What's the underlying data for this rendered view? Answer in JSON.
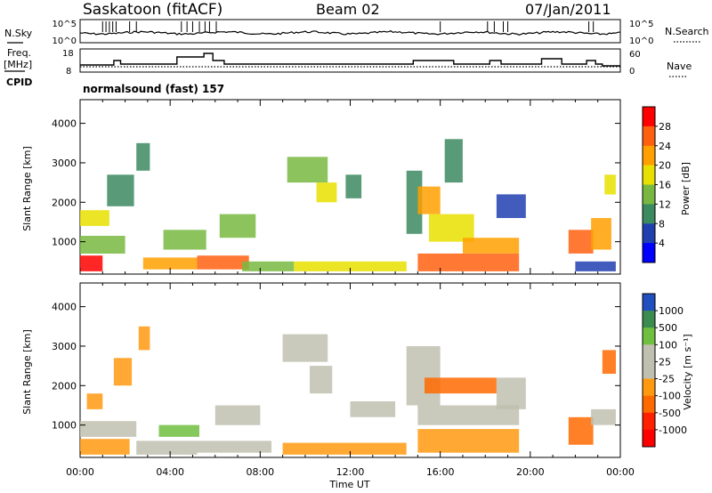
{
  "header": {
    "station": "Saskatoon (fitACF)",
    "beam": "Beam 02",
    "date": "07/Jan/2011"
  },
  "left_labels": {
    "nsky": "N.Sky",
    "freq_line1": "Freq.",
    "freq_line2": "[MHz]",
    "cpid": "CPID"
  },
  "right_labels": {
    "nsearch": "N.Search",
    "nave": "Nave"
  },
  "cpid_text": "normalsound (fast) 157",
  "colors": {
    "power_scale": [
      "#0000ff",
      "#2040b0",
      "#3c8a60",
      "#78b840",
      "#e8e000",
      "#ffa000",
      "#ff6010",
      "#ff0000"
    ],
    "velocity_scale": [
      "#2050c0",
      "#3c8c50",
      "#70c040",
      "#c0c0b0",
      "#c0c0b0",
      "#ff9a10",
      "#ff6a00",
      "#ff2000",
      "#ff0000"
    ]
  },
  "chart_data": [
    {
      "type": "line",
      "name_label": "N.Sky / N.Search",
      "y_ticks": [
        "10^5",
        "10^0"
      ],
      "right_ticks": [
        "10^5",
        "10^0"
      ],
      "x_range_hours": [
        0,
        24
      ]
    },
    {
      "type": "line",
      "left_ticks": [
        "18",
        "8"
      ],
      "right_ticks": [
        "60",
        "0"
      ],
      "series": [
        {
          "name": "Freq.",
          "unit": "MHz",
          "steps": [
            [
              0,
              10.5
            ],
            [
              1.5,
              13
            ],
            [
              1.8,
              11
            ],
            [
              4.2,
              11
            ],
            [
              4.3,
              15
            ],
            [
              5.3,
              15
            ],
            [
              5.5,
              17
            ],
            [
              5.8,
              17
            ],
            [
              5.9,
              13
            ],
            [
              6.4,
              11
            ],
            [
              8.0,
              11
            ],
            [
              9.8,
              11
            ],
            [
              11.2,
              11
            ],
            [
              12.6,
              11
            ],
            [
              13.4,
              11
            ],
            [
              14.3,
              11
            ],
            [
              14.8,
              13
            ],
            [
              16.6,
              11
            ],
            [
              17.6,
              11
            ],
            [
              18.2,
              13
            ],
            [
              18.7,
              11
            ],
            [
              20.4,
              11
            ],
            [
              20.5,
              14
            ],
            [
              21.3,
              14
            ],
            [
              21.4,
              11
            ],
            [
              22.4,
              11
            ],
            [
              22.5,
              13
            ],
            [
              22.9,
              11
            ],
            [
              23.2,
              10
            ],
            [
              24,
              10
            ]
          ]
        },
        {
          "name": "Nave",
          "steps": [
            [
              0,
              9.5
            ],
            [
              24,
              9.5
            ]
          ]
        }
      ]
    },
    {
      "type": "heatmap",
      "name": "Power",
      "xlabel": "",
      "ylabel": "Slant Range [km]",
      "x_ticks": [
        "00:00",
        "04:00",
        "08:00",
        "12:00",
        "16:00",
        "20:00",
        "00:00"
      ],
      "y_ticks": [
        1000,
        2000,
        3000,
        4000
      ],
      "ylim": [
        180,
        4600
      ],
      "colorbar_label": "Power [dB]",
      "colorbar_ticks": [
        4,
        8,
        12,
        16,
        20,
        24,
        28
      ],
      "regions": [
        {
          "t0": 0.0,
          "t1": 1.0,
          "r0": 250,
          "r1": 650,
          "level": 7
        },
        {
          "t0": 0.0,
          "t1": 2.0,
          "r0": 700,
          "r1": 1150,
          "level": 3
        },
        {
          "t0": 0.0,
          "t1": 1.3,
          "r0": 1400,
          "r1": 1800,
          "level": 4
        },
        {
          "t0": 1.2,
          "t1": 2.4,
          "r0": 1900,
          "r1": 2700,
          "level": 2
        },
        {
          "t0": 2.5,
          "t1": 3.1,
          "r0": 2800,
          "r1": 3500,
          "level": 2
        },
        {
          "t0": 2.8,
          "t1": 5.2,
          "r0": 300,
          "r1": 600,
          "level": 5
        },
        {
          "t0": 3.7,
          "t1": 5.6,
          "r0": 800,
          "r1": 1300,
          "level": 3
        },
        {
          "t0": 5.2,
          "t1": 7.5,
          "r0": 300,
          "r1": 650,
          "level": 6
        },
        {
          "t0": 6.2,
          "t1": 7.8,
          "r0": 1100,
          "r1": 1700,
          "level": 3
        },
        {
          "t0": 7.2,
          "t1": 9.5,
          "r0": 250,
          "r1": 500,
          "level": 3
        },
        {
          "t0": 9.2,
          "t1": 11.0,
          "r0": 2500,
          "r1": 3150,
          "level": 3
        },
        {
          "t0": 10.5,
          "t1": 11.4,
          "r0": 2000,
          "r1": 2500,
          "level": 4
        },
        {
          "t0": 9.5,
          "t1": 14.5,
          "r0": 250,
          "r1": 500,
          "level": 4
        },
        {
          "t0": 11.8,
          "t1": 12.5,
          "r0": 2100,
          "r1": 2700,
          "level": 2
        },
        {
          "t0": 14.5,
          "t1": 15.2,
          "r0": 1200,
          "r1": 2800,
          "level": 2
        },
        {
          "t0": 15.0,
          "t1": 16.0,
          "r0": 1700,
          "r1": 2400,
          "level": 5
        },
        {
          "t0": 15.5,
          "t1": 17.5,
          "r0": 1000,
          "r1": 1700,
          "level": 4
        },
        {
          "t0": 15.0,
          "t1": 19.5,
          "r0": 250,
          "r1": 700,
          "level": 6
        },
        {
          "t0": 17.0,
          "t1": 19.5,
          "r0": 700,
          "r1": 1100,
          "level": 5
        },
        {
          "t0": 18.5,
          "t1": 19.8,
          "r0": 1600,
          "r1": 2200,
          "level": 1
        },
        {
          "t0": 16.2,
          "t1": 17.0,
          "r0": 2500,
          "r1": 3600,
          "level": 2
        },
        {
          "t0": 21.7,
          "t1": 22.8,
          "r0": 700,
          "r1": 1300,
          "level": 6
        },
        {
          "t0": 22.7,
          "t1": 23.6,
          "r0": 800,
          "r1": 1600,
          "level": 5
        },
        {
          "t0": 23.3,
          "t1": 23.8,
          "r0": 2200,
          "r1": 2700,
          "level": 4
        },
        {
          "t0": 22.0,
          "t1": 23.8,
          "r0": 250,
          "r1": 500,
          "level": 1
        }
      ]
    },
    {
      "type": "heatmap",
      "name": "Velocity",
      "xlabel": "Time UT",
      "ylabel": "Slant Range [km]",
      "x_ticks": [
        "00:00",
        "04:00",
        "08:00",
        "12:00",
        "16:00",
        "20:00",
        "00:00"
      ],
      "y_ticks": [
        1000,
        2000,
        3000,
        4000
      ],
      "ylim": [
        180,
        4600
      ],
      "colorbar_label": "Velocity [m s⁻¹]",
      "colorbar_ticks": [
        1000,
        500,
        100,
        25,
        -25,
        -100,
        -500,
        -1000
      ],
      "regions": [
        {
          "t0": 0.0,
          "t1": 2.2,
          "r0": 250,
          "r1": 650,
          "level": 5
        },
        {
          "t0": 0.0,
          "t1": 2.5,
          "r0": 700,
          "r1": 1100,
          "level": 3
        },
        {
          "t0": 0.3,
          "t1": 1.0,
          "r0": 1400,
          "r1": 1800,
          "level": 5
        },
        {
          "t0": 1.5,
          "t1": 2.3,
          "r0": 2000,
          "r1": 2700,
          "level": 5
        },
        {
          "t0": 2.6,
          "t1": 3.1,
          "r0": 2900,
          "r1": 3500,
          "level": 5
        },
        {
          "t0": 2.5,
          "t1": 5.2,
          "r0": 250,
          "r1": 600,
          "level": 3
        },
        {
          "t0": 3.5,
          "t1": 5.3,
          "r0": 700,
          "r1": 1000,
          "level": 2
        },
        {
          "t0": 5.2,
          "t1": 8.5,
          "r0": 300,
          "r1": 600,
          "level": 3
        },
        {
          "t0": 6.0,
          "t1": 8.0,
          "r0": 1000,
          "r1": 1500,
          "level": 3
        },
        {
          "t0": 9.0,
          "t1": 11.0,
          "r0": 2600,
          "r1": 3300,
          "level": 3
        },
        {
          "t0": 10.2,
          "t1": 11.2,
          "r0": 1800,
          "r1": 2500,
          "level": 3
        },
        {
          "t0": 9.0,
          "t1": 14.5,
          "r0": 250,
          "r1": 550,
          "level": 5
        },
        {
          "t0": 12.0,
          "t1": 14.0,
          "r0": 1200,
          "r1": 1600,
          "level": 3
        },
        {
          "t0": 14.5,
          "t1": 16.0,
          "r0": 1500,
          "r1": 3000,
          "level": 3
        },
        {
          "t0": 15.3,
          "t1": 18.5,
          "r0": 1800,
          "r1": 2200,
          "level": 6
        },
        {
          "t0": 15.0,
          "t1": 19.5,
          "r0": 1000,
          "r1": 1500,
          "level": 3
        },
        {
          "t0": 15.0,
          "t1": 19.5,
          "r0": 300,
          "r1": 900,
          "level": 5
        },
        {
          "t0": 18.5,
          "t1": 19.8,
          "r0": 1400,
          "r1": 2200,
          "level": 3
        },
        {
          "t0": 21.7,
          "t1": 22.8,
          "r0": 500,
          "r1": 1200,
          "level": 6
        },
        {
          "t0": 22.7,
          "t1": 23.8,
          "r0": 1000,
          "r1": 1400,
          "level": 3
        },
        {
          "t0": 23.2,
          "t1": 23.8,
          "r0": 2300,
          "r1": 2900,
          "level": 6
        }
      ]
    }
  ]
}
